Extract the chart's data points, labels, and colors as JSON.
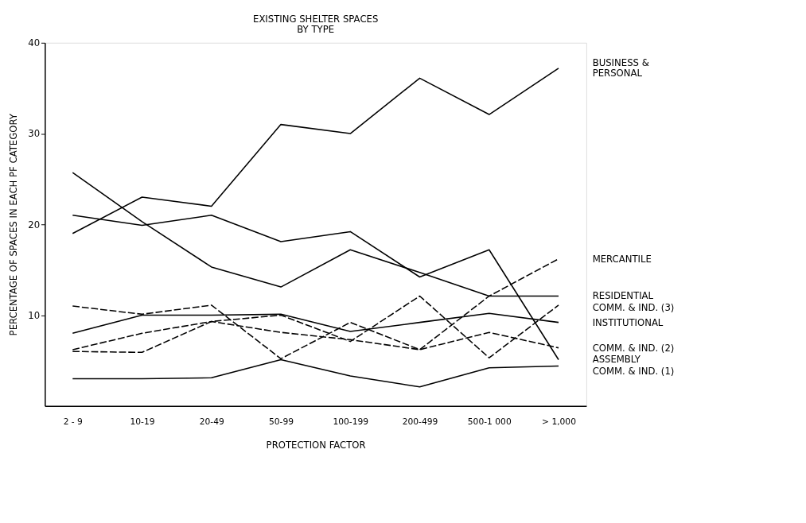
{
  "chart_data": {
    "type": "line",
    "title": "EXISTING SHELTER SPACES\nBY TYPE",
    "xlabel": "PROTECTION FACTOR",
    "ylabel": "PERCENTAGE OF SPACES IN EACH PF CATEGORY",
    "categories": [
      "2 - 9",
      "10-19",
      "20-49",
      "50-99",
      "100-199",
      "200-499",
      "500-1 000",
      "> 1,000"
    ],
    "ylim": [
      0,
      40
    ],
    "yticks": [
      10,
      20,
      30,
      40
    ],
    "grid": false,
    "legend": false,
    "marker": "none",
    "series": [
      {
        "name": "BUSINESS &\nPERSONAL",
        "color": "#000000",
        "line_style": "solid",
        "values": [
          19.0,
          23.0,
          22.0,
          31.0,
          30.0,
          36.1,
          32.1,
          37.2
        ]
      },
      {
        "name": "MERCANTILE",
        "color": "#000000",
        "line_style": "dashed",
        "values": [
          11.0,
          10.1,
          11.1,
          5.2,
          9.2,
          6.2,
          12.1,
          16.2
        ]
      },
      {
        "name": "RESIDENTIAL",
        "color": "#000000",
        "line_style": "solid",
        "values": [
          25.7,
          20.3,
          15.3,
          13.1,
          17.2,
          14.7,
          12.1,
          12.1
        ]
      },
      {
        "name": "COMM. & IND. (3)",
        "color": "#000000",
        "line_style": "dashed",
        "values": [
          6.0,
          5.9,
          9.3,
          10.0,
          7.1,
          12.1,
          5.3,
          11.1
        ]
      },
      {
        "name": "INSTITUTIONAL",
        "color": "#000000",
        "line_style": "solid",
        "values": [
          8.0,
          10.0,
          10.0,
          10.1,
          8.2,
          9.2,
          10.2,
          9.2
        ]
      },
      {
        "name": "COMM. & IND. (2)",
        "color": "#000000",
        "line_style": "dashed",
        "values": [
          6.2,
          8.0,
          9.3,
          8.1,
          7.3,
          6.2,
          8.1,
          6.4
        ]
      },
      {
        "name": "ASSEMBLY",
        "color": "#000000",
        "line_style": "solid",
        "values": [
          21.0,
          19.9,
          21.0,
          18.1,
          19.2,
          14.2,
          17.2,
          5.1
        ]
      },
      {
        "name": "COMM. & IND. (1)",
        "color": "#000000",
        "line_style": "solid",
        "values": [
          3.0,
          3.0,
          3.1,
          5.1,
          3.3,
          2.1,
          4.2,
          4.4
        ]
      }
    ]
  }
}
